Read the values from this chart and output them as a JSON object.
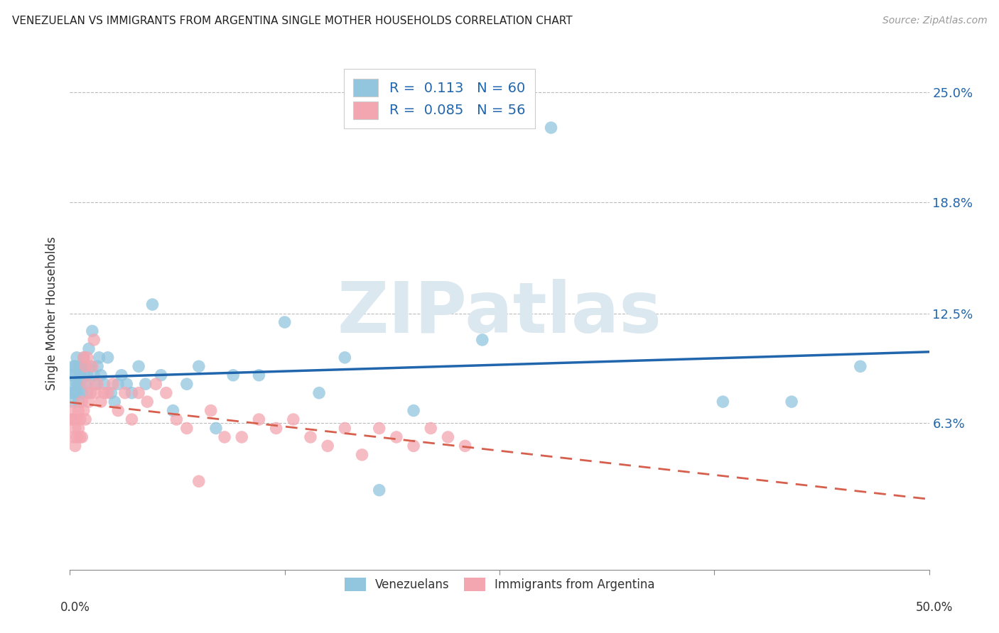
{
  "title": "VENEZUELAN VS IMMIGRANTS FROM ARGENTINA SINGLE MOTHER HOUSEHOLDS CORRELATION CHART",
  "source": "Source: ZipAtlas.com",
  "ylabel": "Single Mother Households",
  "ytick_labels": [
    "6.3%",
    "12.5%",
    "18.8%",
    "25.0%"
  ],
  "ytick_values": [
    0.063,
    0.125,
    0.188,
    0.25
  ],
  "xlim": [
    0.0,
    0.5
  ],
  "ylim": [
    -0.02,
    0.27
  ],
  "R_blue": 0.113,
  "N_blue": 60,
  "R_pink": 0.085,
  "N_pink": 56,
  "blue_color": "#92c5de",
  "pink_color": "#f4a6b0",
  "blue_line_color": "#2166ac",
  "pink_line_color": "#d6604d",
  "watermark_text": "ZIPatlas",
  "watermark_color": "#dce8f0",
  "venezuelan_x": [
    0.001,
    0.001,
    0.002,
    0.002,
    0.002,
    0.003,
    0.003,
    0.003,
    0.004,
    0.004,
    0.004,
    0.005,
    0.005,
    0.005,
    0.006,
    0.006,
    0.007,
    0.007,
    0.008,
    0.008,
    0.009,
    0.009,
    0.01,
    0.01,
    0.011,
    0.012,
    0.013,
    0.014,
    0.015,
    0.016,
    0.017,
    0.018,
    0.02,
    0.022,
    0.024,
    0.026,
    0.028,
    0.03,
    0.033,
    0.036,
    0.04,
    0.044,
    0.048,
    0.053,
    0.06,
    0.068,
    0.075,
    0.085,
    0.095,
    0.11,
    0.125,
    0.145,
    0.16,
    0.18,
    0.2,
    0.24,
    0.28,
    0.38,
    0.42,
    0.46
  ],
  "venezuelan_y": [
    0.08,
    0.09,
    0.085,
    0.095,
    0.075,
    0.09,
    0.08,
    0.095,
    0.085,
    0.1,
    0.08,
    0.085,
    0.095,
    0.075,
    0.09,
    0.085,
    0.095,
    0.08,
    0.1,
    0.09,
    0.085,
    0.095,
    0.08,
    0.09,
    0.105,
    0.095,
    0.115,
    0.09,
    0.085,
    0.095,
    0.1,
    0.09,
    0.085,
    0.1,
    0.08,
    0.075,
    0.085,
    0.09,
    0.085,
    0.08,
    0.095,
    0.085,
    0.13,
    0.09,
    0.07,
    0.085,
    0.095,
    0.06,
    0.09,
    0.09,
    0.12,
    0.08,
    0.1,
    0.025,
    0.07,
    0.11,
    0.23,
    0.075,
    0.075,
    0.095
  ],
  "argentina_x": [
    0.001,
    0.001,
    0.002,
    0.002,
    0.003,
    0.003,
    0.004,
    0.004,
    0.005,
    0.005,
    0.006,
    0.006,
    0.007,
    0.007,
    0.008,
    0.008,
    0.009,
    0.009,
    0.01,
    0.01,
    0.011,
    0.012,
    0.013,
    0.014,
    0.015,
    0.016,
    0.018,
    0.02,
    0.022,
    0.025,
    0.028,
    0.032,
    0.036,
    0.04,
    0.045,
    0.05,
    0.056,
    0.062,
    0.068,
    0.075,
    0.082,
    0.09,
    0.1,
    0.11,
    0.12,
    0.13,
    0.14,
    0.15,
    0.16,
    0.17,
    0.18,
    0.19,
    0.2,
    0.21,
    0.22,
    0.23
  ],
  "argentina_y": [
    0.065,
    0.07,
    0.055,
    0.065,
    0.05,
    0.06,
    0.065,
    0.055,
    0.07,
    0.06,
    0.055,
    0.065,
    0.075,
    0.055,
    0.1,
    0.07,
    0.095,
    0.065,
    0.085,
    0.1,
    0.075,
    0.08,
    0.095,
    0.11,
    0.08,
    0.085,
    0.075,
    0.08,
    0.08,
    0.085,
    0.07,
    0.08,
    0.065,
    0.08,
    0.075,
    0.085,
    0.08,
    0.065,
    0.06,
    0.03,
    0.07,
    0.055,
    0.055,
    0.065,
    0.06,
    0.065,
    0.055,
    0.05,
    0.06,
    0.045,
    0.06,
    0.055,
    0.05,
    0.06,
    0.055,
    0.05
  ]
}
